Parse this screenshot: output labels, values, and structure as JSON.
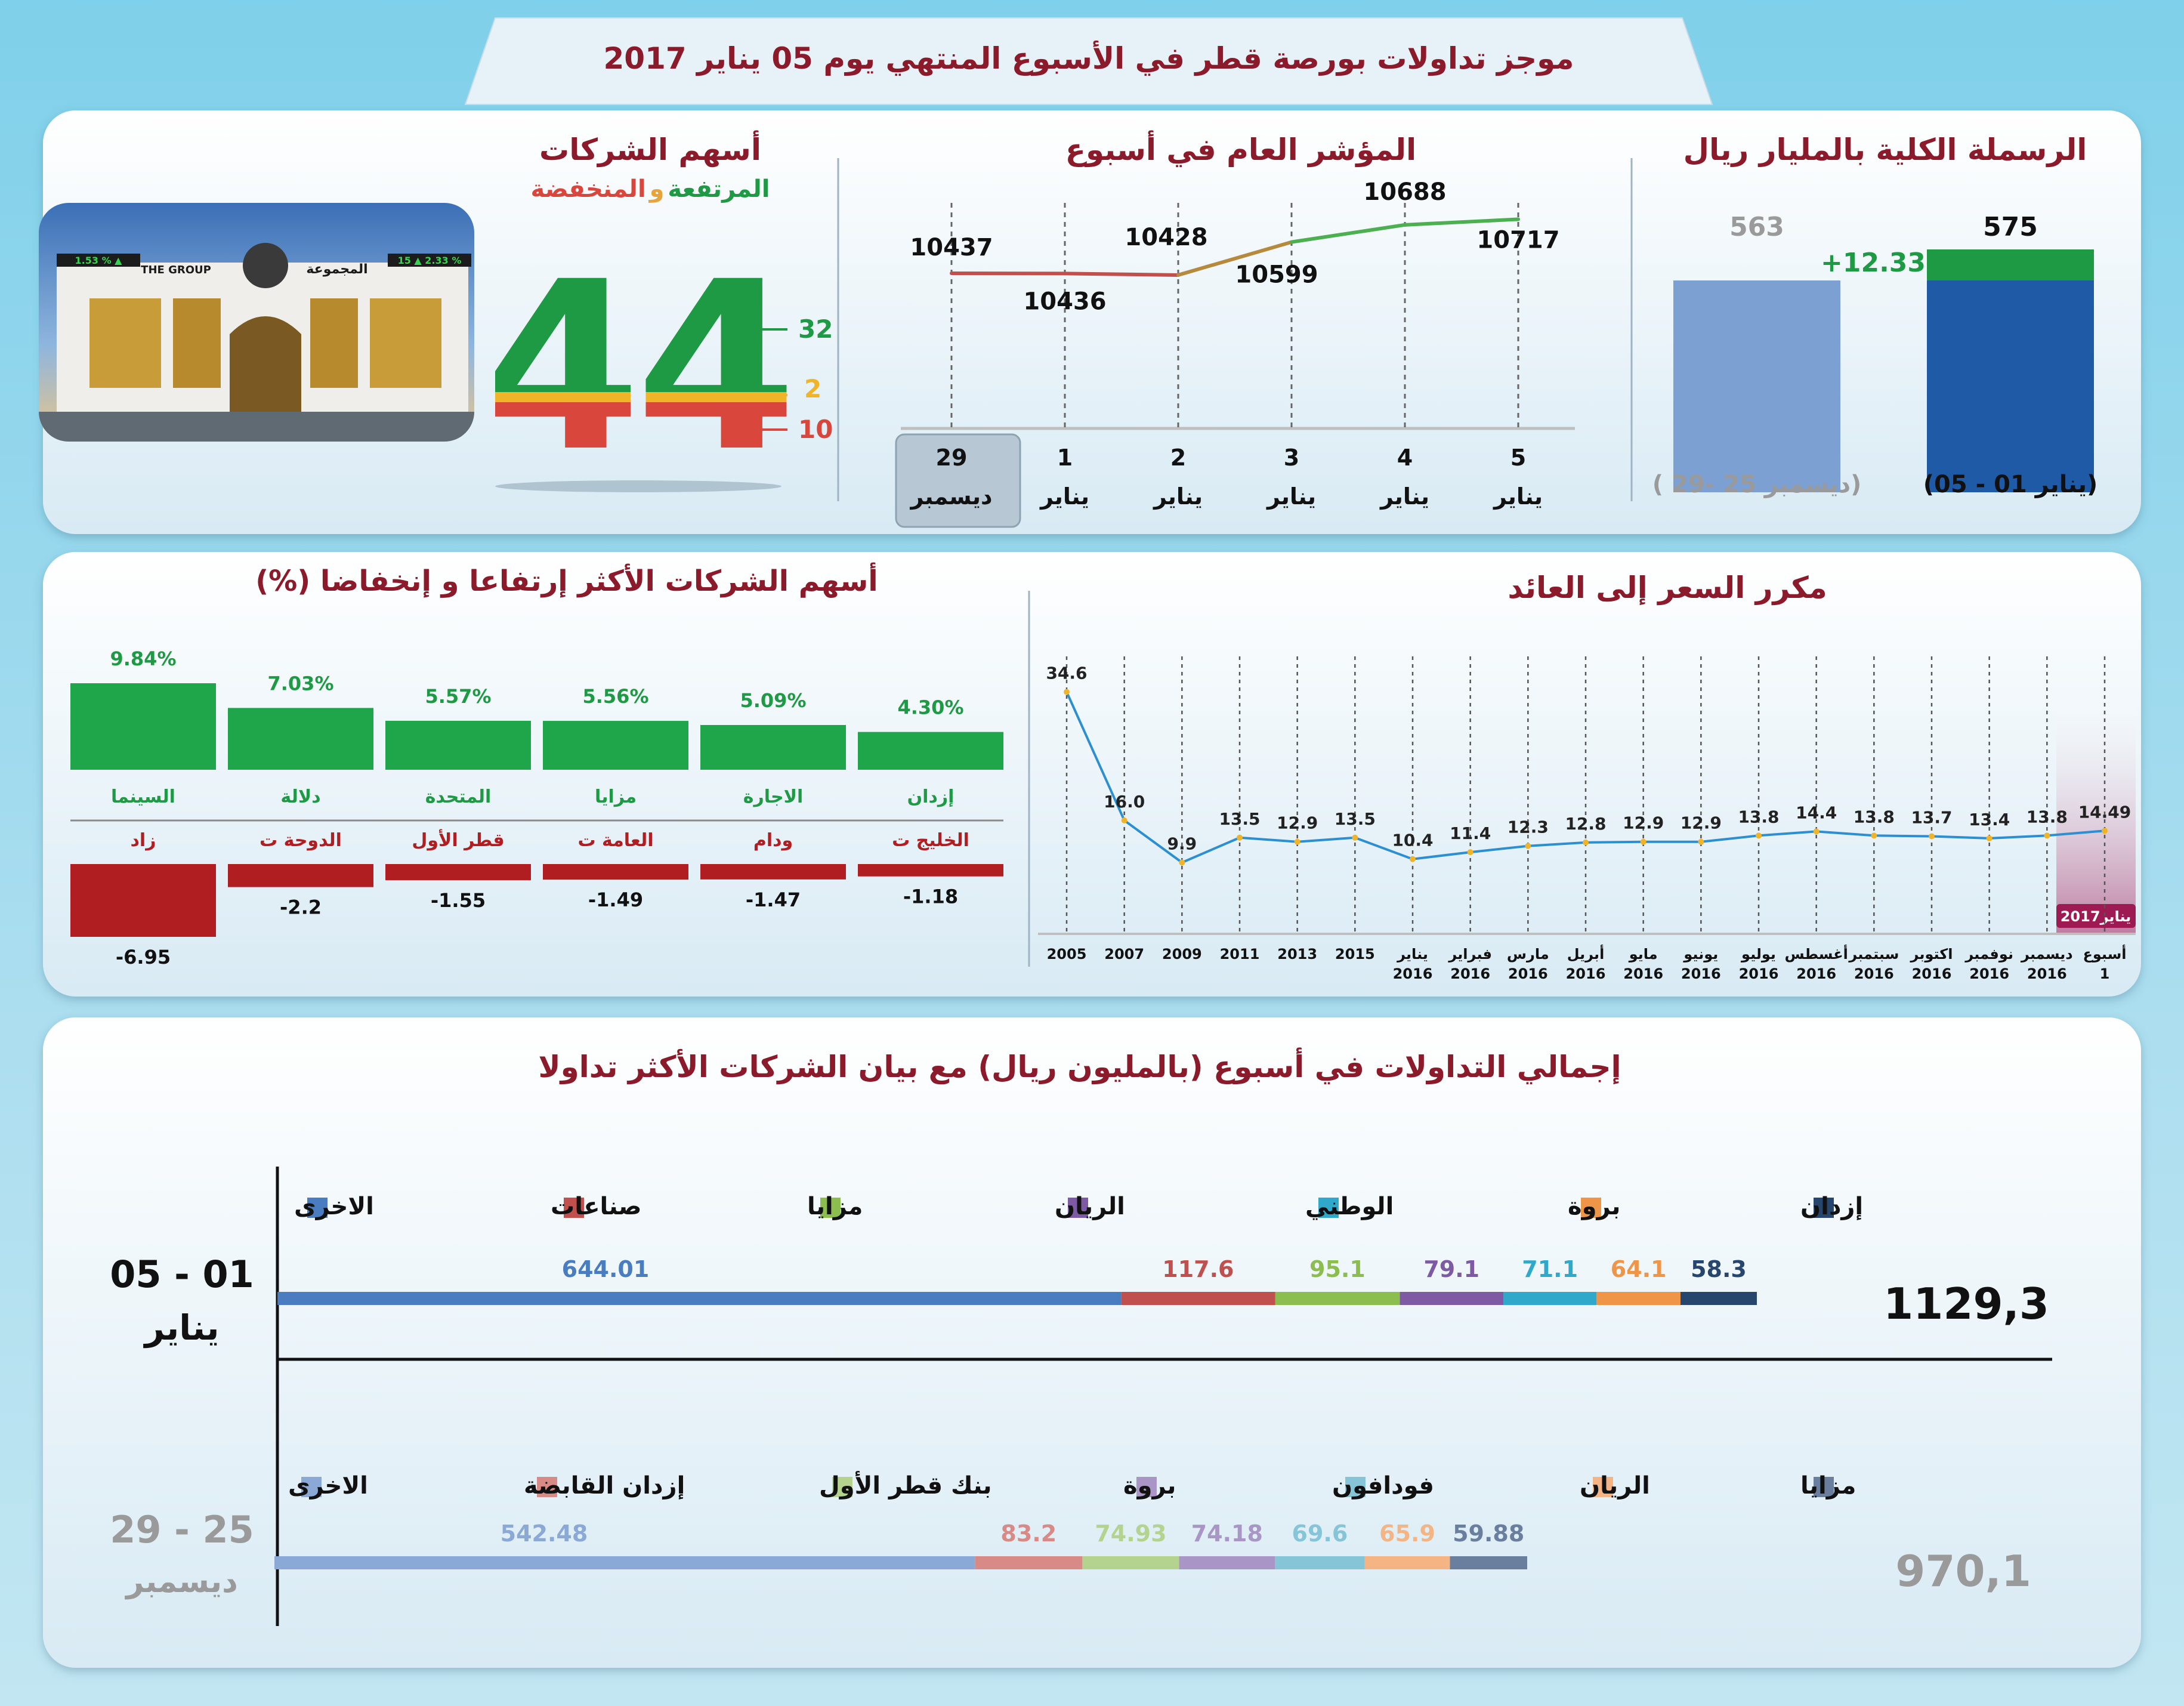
{
  "title": "موجز تداولات بورصة قطر في الأسبوع المنتهي يوم 05 يناير 2017",
  "colors": {
    "maroon": "#8b1a2a",
    "green": "#1e9a44",
    "red": "#d9463c",
    "blue": "#1f5aa6",
    "lightblue": "#7da0d3"
  },
  "market_cap": {
    "title": "الرسملة الكلية بالمليار ريال",
    "current": {
      "label": "(يناير 01 - 05)",
      "value": "575",
      "base": 563,
      "total": 575
    },
    "previous": {
      "label": "(ديسمبر 25 -29 )",
      "value": "563",
      "total": 563
    },
    "change": "+12.33"
  },
  "index": {
    "title": "المؤشر العام في أسبوع",
    "points": [
      {
        "day": "29",
        "month": "ديسمبر",
        "value": 10437,
        "label": "10437"
      },
      {
        "day": "1",
        "month": "يناير",
        "value": 10436,
        "label": "10436"
      },
      {
        "day": "2",
        "month": "يناير",
        "value": 10428,
        "label": "10428"
      },
      {
        "day": "3",
        "month": "يناير",
        "value": 10599,
        "label": "10599"
      },
      {
        "day": "4",
        "month": "يناير",
        "value": 10688,
        "label": "10688"
      },
      {
        "day": "5",
        "month": "يناير",
        "value": 10717,
        "label": "10717"
      }
    ]
  },
  "companies": {
    "title": "أسهم الشركات",
    "subtitle_up": "المرتفعة",
    "subtitle_and": "و",
    "subtitle_down": "المنخفضة",
    "total": "44",
    "up": "32",
    "unchanged": "2",
    "down": "10",
    "building_sign_en": "THE GROUP",
    "building_sign_ar": "المجموعة",
    "ticker_left": "1.53 % ▲",
    "ticker_right": "15 ▲ 2.33 %"
  },
  "gainers_losers": {
    "title": "أسهم الشركات الأكثر إرتفاعا و إنخفاضا (%)",
    "gainers": [
      {
        "name": "السينما",
        "value": 9.84,
        "label": "9.84%"
      },
      {
        "name": "دلالة",
        "value": 7.03,
        "label": "7.03%"
      },
      {
        "name": "المتحدة",
        "value": 5.57,
        "label": "5.57%"
      },
      {
        "name": "مزايا",
        "value": 5.56,
        "label": "5.56%"
      },
      {
        "name": "الاجارة",
        "value": 5.09,
        "label": "5.09%"
      },
      {
        "name": "إزدان",
        "value": 4.3,
        "label": "4.30%"
      }
    ],
    "losers": [
      {
        "name": "زاد",
        "value": -6.95,
        "label": "-6.95"
      },
      {
        "name": "الدوحة ت",
        "value": -2.2,
        "label": "-2.2"
      },
      {
        "name": "قطر الأول",
        "value": -1.55,
        "label": "-1.55"
      },
      {
        "name": "العامة ت",
        "value": -1.49,
        "label": "-1.49"
      },
      {
        "name": "ودام",
        "value": -1.47,
        "label": "-1.47"
      },
      {
        "name": "الخليج ت",
        "value": -1.18,
        "label": "-1.18"
      }
    ]
  },
  "pe": {
    "title": "مكرر السعر إلى العائد",
    "badge": "يناير2017",
    "points": [
      {
        "x1": "2005",
        "x2": "",
        "value": 34.6,
        "label": "34.6"
      },
      {
        "x1": "2007",
        "x2": "",
        "value": 16.0,
        "label": "16.0"
      },
      {
        "x1": "2009",
        "x2": "",
        "value": 9.9,
        "label": "9.9"
      },
      {
        "x1": "2011",
        "x2": "",
        "value": 13.5,
        "label": "13.5"
      },
      {
        "x1": "2013",
        "x2": "",
        "value": 12.9,
        "label": "12.9"
      },
      {
        "x1": "2015",
        "x2": "",
        "value": 13.5,
        "label": "13.5"
      },
      {
        "x1": "يناير",
        "x2": "2016",
        "value": 10.4,
        "label": "10.4"
      },
      {
        "x1": "فبراير",
        "x2": "2016",
        "value": 11.4,
        "label": "11.4"
      },
      {
        "x1": "مارس",
        "x2": "2016",
        "value": 12.3,
        "label": "12.3"
      },
      {
        "x1": "أبريل",
        "x2": "2016",
        "value": 12.8,
        "label": "12.8"
      },
      {
        "x1": "مايو",
        "x2": "2016",
        "value": 12.9,
        "label": "12.9"
      },
      {
        "x1": "يونيو",
        "x2": "2016",
        "value": 12.9,
        "label": "12.9"
      },
      {
        "x1": "يوليو",
        "x2": "2016",
        "value": 13.8,
        "label": "13.8"
      },
      {
        "x1": "أغسطس",
        "x2": "2016",
        "value": 14.4,
        "label": "14.4"
      },
      {
        "x1": "سبتمبر",
        "x2": "2016",
        "value": 13.8,
        "label": "13.8"
      },
      {
        "x1": "اكتوبر",
        "x2": "2016",
        "value": 13.7,
        "label": "13.7"
      },
      {
        "x1": "نوفمبر",
        "x2": "2016",
        "value": 13.4,
        "label": "13.4"
      },
      {
        "x1": "ديسمبر",
        "x2": "2016",
        "value": 13.8,
        "label": "13.8"
      },
      {
        "x1": "أسبوع",
        "x2": "1",
        "value": 14.49,
        "label": "14.49"
      }
    ]
  },
  "trading": {
    "title": "إجمالي التداولات في أسبوع (بالمليون ريال) مع  بيان الشركات الأكثر تداولا",
    "current": {
      "period_line1": "05 - 01",
      "period_line2": "يناير",
      "total": "1129,3",
      "segments": [
        {
          "name": "إزدان",
          "value": 58.3,
          "label": "58.3",
          "color": "#26466e"
        },
        {
          "name": "بروة",
          "value": 64.1,
          "label": "64.1",
          "color": "#ef9548"
        },
        {
          "name": "الوطني",
          "value": 71.1,
          "label": "71.1",
          "color": "#2fa8c9"
        },
        {
          "name": "الريان",
          "value": 79.1,
          "label": "79.1",
          "color": "#7e5aa4"
        },
        {
          "name": "مزايا",
          "value": 95.1,
          "label": "95.1",
          "color": "#8bbd4f"
        },
        {
          "name": "صناعات",
          "value": 117.6,
          "label": "117.6",
          "color": "#c0504d"
        },
        {
          "name": "الاخرى",
          "value": 644.01,
          "label": "644.01",
          "color": "#4a7cc0"
        }
      ]
    },
    "previous": {
      "period_line1": "29 - 25",
      "period_line2": "ديسمبر",
      "total": "970,1",
      "segments": [
        {
          "name": "مزايا",
          "value": 59.88,
          "label": "59.88",
          "color": "#6a7f9e"
        },
        {
          "name": "الريان",
          "value": 65.9,
          "label": "65.9",
          "color": "#f4b483"
        },
        {
          "name": "فودافون",
          "value": 69.6,
          "label": "69.6",
          "color": "#86c4d8"
        },
        {
          "name": "بروة",
          "value": 74.18,
          "label": "74.18",
          "color": "#a995c6"
        },
        {
          "name": "بنك قطر الأول",
          "value": 74.93,
          "label": "74.93",
          "color": "#b3d38e"
        },
        {
          "name": "إزدان القابضة",
          "value": 83.2,
          "label": "83.2",
          "color": "#d88a86"
        },
        {
          "name": "الاخرى",
          "value": 542.48,
          "label": "542.48",
          "color": "#8ba9d6"
        }
      ]
    }
  }
}
